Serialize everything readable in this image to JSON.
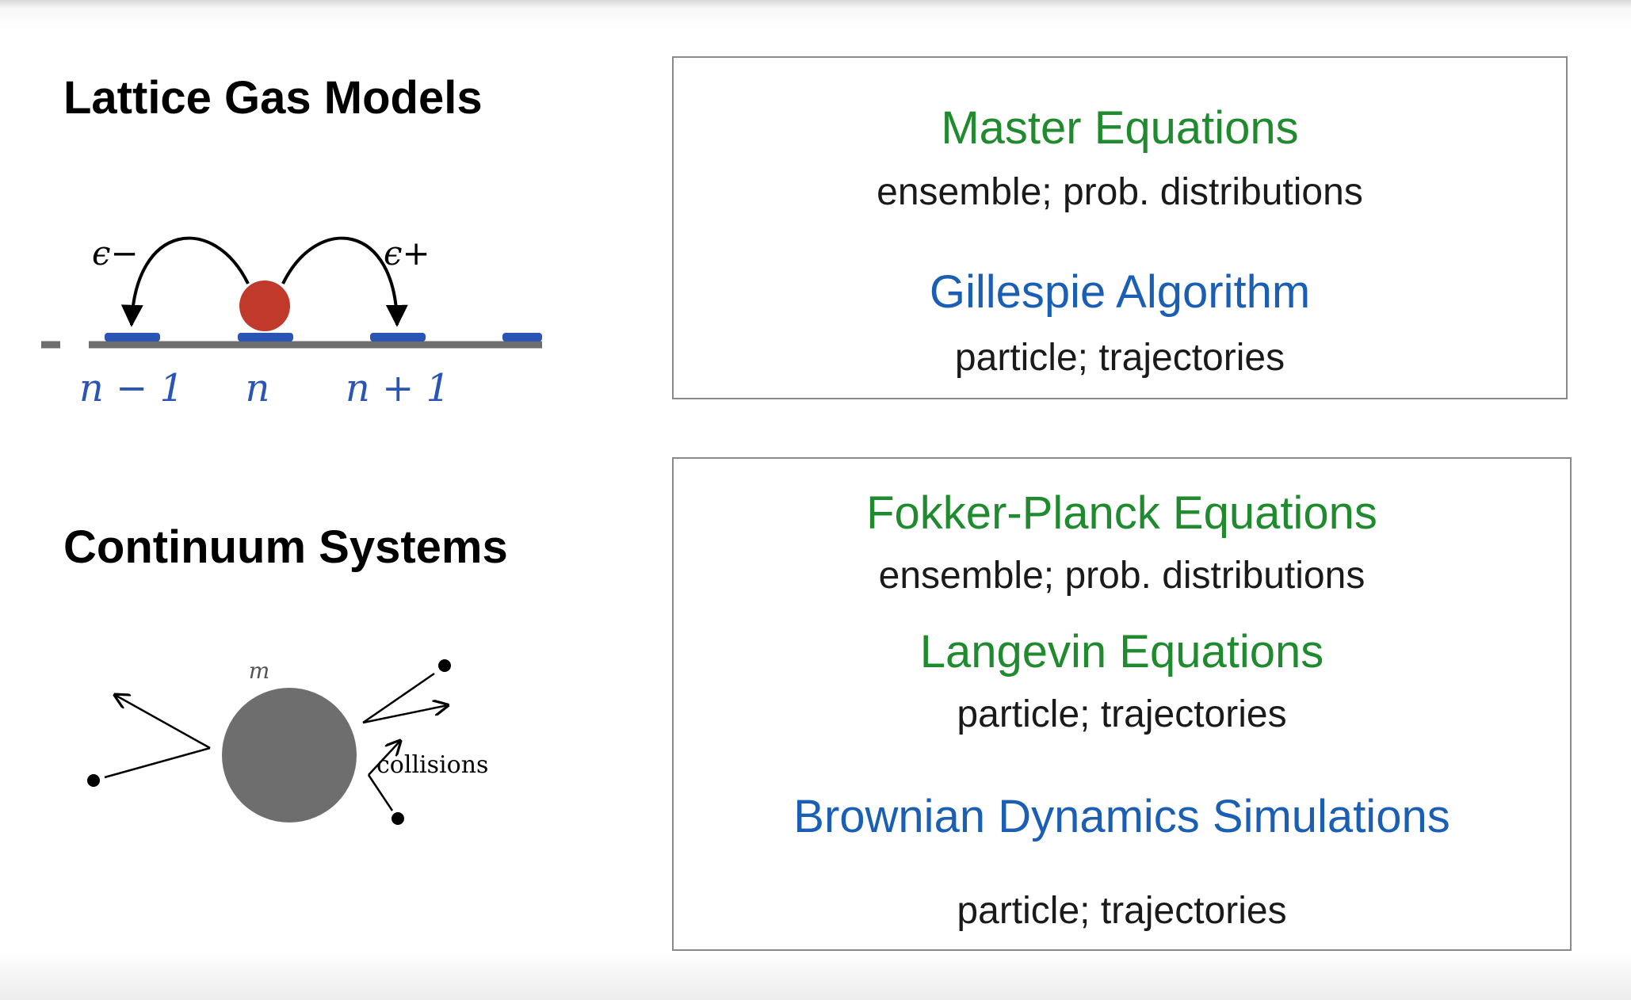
{
  "sections": {
    "lattice": {
      "heading": "Lattice Gas Models",
      "rate_minus": "ϵ−",
      "rate_plus": "ϵ+",
      "site_labels": [
        "n − 1",
        "n",
        "n + 1"
      ]
    },
    "continuum": {
      "heading": "Continuum Systems",
      "mass_label": "m",
      "collisions_label": "collisions"
    }
  },
  "panels": {
    "lattice_panel": {
      "items": [
        {
          "title": "Master Equations",
          "description": "ensemble; prob. distributions"
        },
        {
          "title": "Gillespie Algorithm",
          "description": "particle; trajectories"
        }
      ]
    },
    "continuum_panel": {
      "items": [
        {
          "title": "Fokker-Planck Equations",
          "description": "ensemble; prob. distributions"
        },
        {
          "title": "Langevin Equations",
          "description": "particle; trajectories"
        },
        {
          "title": "Brownian Dynamics Simulations",
          "description": "particle; trajectories"
        }
      ]
    }
  },
  "colors": {
    "ensemble_title": "#1f8a2e",
    "simulation_title": "#1b5fb4",
    "particle": "#c0392b",
    "lattice_site": "#2a55b5",
    "brownian_particle": "#6e6e6e"
  }
}
